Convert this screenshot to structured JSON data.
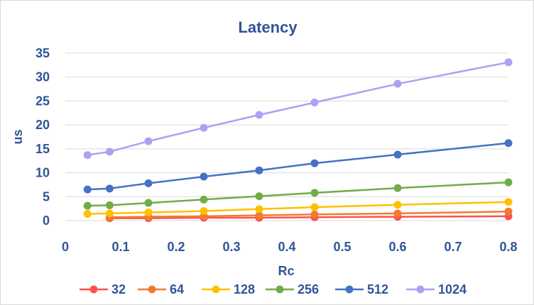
{
  "chart_data": {
    "type": "line",
    "title": "Latency",
    "xlabel": "Rc",
    "ylabel": "us",
    "xlim": [
      0,
      0.8
    ],
    "ylim": [
      0,
      35
    ],
    "x_ticks": [
      "0",
      "0.1",
      "0.2",
      "0.3",
      "0.4",
      "0.5",
      "0.6",
      "0.7",
      "0.8"
    ],
    "y_ticks": [
      "0",
      "5",
      "10",
      "15",
      "20",
      "25",
      "30",
      "35"
    ],
    "grid": true,
    "legend": "bottom",
    "series": [
      {
        "name": "32",
        "color": "#ff5050",
        "x": [
          0.08,
          0.15,
          0.25,
          0.35,
          0.45,
          0.6,
          0.8
        ],
        "y": [
          0.5,
          0.5,
          0.6,
          0.6,
          0.7,
          0.8,
          0.9
        ]
      },
      {
        "name": "64",
        "color": "#ed7d31",
        "x": [
          0.08,
          0.15,
          0.25,
          0.35,
          0.45,
          0.6,
          0.8
        ],
        "y": [
          0.7,
          0.8,
          0.9,
          1.1,
          1.3,
          1.5,
          1.9
        ]
      },
      {
        "name": "128",
        "color": "#ffc000",
        "x": [
          0.04,
          0.08,
          0.15,
          0.25,
          0.35,
          0.45,
          0.6,
          0.8
        ],
        "y": [
          1.4,
          1.5,
          1.7,
          2.0,
          2.4,
          2.8,
          3.3,
          3.9
        ]
      },
      {
        "name": "256",
        "color": "#70ad47",
        "x": [
          0.04,
          0.08,
          0.15,
          0.25,
          0.35,
          0.45,
          0.6,
          0.8
        ],
        "y": [
          3.1,
          3.2,
          3.7,
          4.4,
          5.1,
          5.8,
          6.8,
          8.0
        ]
      },
      {
        "name": "512",
        "color": "#4472c4",
        "x": [
          0.04,
          0.08,
          0.15,
          0.25,
          0.35,
          0.45,
          0.6,
          0.8
        ],
        "y": [
          6.5,
          6.7,
          7.8,
          9.2,
          10.5,
          12.0,
          13.8,
          16.2
        ]
      },
      {
        "name": "1024",
        "color": "#a9a3f5",
        "x": [
          0.04,
          0.08,
          0.15,
          0.25,
          0.35,
          0.45,
          0.6,
          0.8
        ],
        "y": [
          13.7,
          14.4,
          16.6,
          19.4,
          22.1,
          24.7,
          28.6,
          33.1
        ]
      }
    ]
  }
}
